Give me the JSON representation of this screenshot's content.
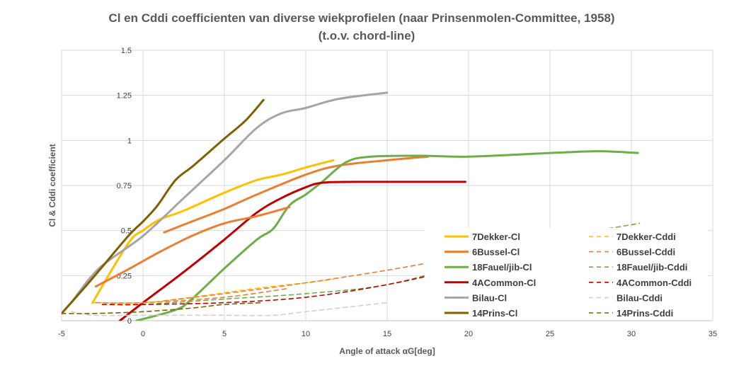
{
  "chart_data": {
    "type": "line",
    "title": "Cl en Cddi coefficienten van diverse wiekprofielen (naar Prinsenmolen-Committee,  1958)",
    "subtitle": "(t.o.v. chord-line)",
    "xlabel": "Angle of attack αG[deg]",
    "ylabel": "Cl & Cddi coefficient",
    "xlim": [
      -5,
      35
    ],
    "ylim": [
      0,
      1.5
    ],
    "xticks": [
      "-5",
      "0",
      "5",
      "10",
      "15",
      "20",
      "25",
      "30",
      "35"
    ],
    "yticks": [
      "0",
      "0.25",
      "0.5",
      "0.75",
      "1",
      "1.25",
      "1.5"
    ],
    "grid": true,
    "legend_position": "bottom-right inside",
    "series": [
      {
        "name": "7Dekker-Cl",
        "color": "#FFC000",
        "dash": false,
        "points": [
          [
            -3.1,
            0.1
          ],
          [
            -0.9,
            0.43
          ],
          [
            0,
            0.5
          ],
          [
            1,
            0.56
          ],
          [
            2.5,
            0.61
          ],
          [
            5,
            0.71
          ],
          [
            7,
            0.78
          ],
          [
            8.5,
            0.81
          ],
          [
            10,
            0.85
          ],
          [
            11.7,
            0.89
          ]
        ]
      },
      {
        "name": "6Bussel-Cl",
        "color": "#ED7D31",
        "dash": false,
        "points": [
          [
            1.3,
            0.49
          ],
          [
            3,
            0.55
          ],
          [
            5,
            0.62
          ],
          [
            7,
            0.7
          ],
          [
            10,
            0.81
          ],
          [
            12,
            0.86
          ],
          [
            15,
            0.89
          ],
          [
            17.5,
            0.91
          ]
        ]
      },
      {
        "name": "18Fauel/jib-Cl",
        "color": "#70AD47",
        "dash": false,
        "points": [
          [
            -0.4,
            0
          ],
          [
            2,
            0.06
          ],
          [
            3,
            0.12
          ],
          [
            5,
            0.29
          ],
          [
            7,
            0.45
          ],
          [
            8,
            0.51
          ],
          [
            9,
            0.64
          ],
          [
            10,
            0.7
          ],
          [
            11,
            0.77
          ],
          [
            12.5,
            0.88
          ],
          [
            14,
            0.91
          ],
          [
            17,
            0.915
          ],
          [
            20,
            0.91
          ],
          [
            25,
            0.93
          ],
          [
            28,
            0.94
          ],
          [
            30.4,
            0.93
          ]
        ]
      },
      {
        "name": "4ACommon-Cl",
        "color": "#C00000",
        "dash": false,
        "points": [
          [
            -1.7,
            -0.02
          ],
          [
            0,
            0.1
          ],
          [
            2.5,
            0.27
          ],
          [
            5,
            0.45
          ],
          [
            7,
            0.6
          ],
          [
            8.5,
            0.68
          ],
          [
            10,
            0.74
          ],
          [
            11,
            0.765
          ],
          [
            13,
            0.77
          ],
          [
            19.8,
            0.77
          ]
        ]
      },
      {
        "name": "Bilau-Cl",
        "color": "#A5A5A5",
        "dash": false,
        "points": [
          [
            -4.4,
            0.1
          ],
          [
            -2.7,
            0.29
          ],
          [
            0,
            0.47
          ],
          [
            2.5,
            0.68
          ],
          [
            5,
            0.89
          ],
          [
            7,
            1.07
          ],
          [
            8.5,
            1.15
          ],
          [
            10,
            1.18
          ],
          [
            12,
            1.23
          ],
          [
            15,
            1.265
          ]
        ]
      },
      {
        "name": "14Prins-Cl",
        "color": "#7F6000",
        "dash": false,
        "points": [
          [
            -5,
            0.04
          ],
          [
            -3.1,
            0.235
          ],
          [
            -0.9,
            0.47
          ],
          [
            0,
            0.55
          ],
          [
            0.9,
            0.64
          ],
          [
            2,
            0.78
          ],
          [
            3.1,
            0.86
          ],
          [
            5,
            1.01
          ],
          [
            6.3,
            1.11
          ],
          [
            7.4,
            1.224
          ]
        ]
      },
      {
        "name": "7Dekker-Cddi",
        "color": "#FFC000",
        "dash": true,
        "points": [
          [
            -3.1,
            0.1
          ],
          [
            0,
            0.1
          ],
          [
            3,
            0.13
          ],
          [
            7,
            0.18
          ],
          [
            10,
            0.21
          ],
          [
            11.7,
            0.23
          ]
        ]
      },
      {
        "name": "6Bussel-Cddi",
        "color": "#ED7D31",
        "dash": true,
        "points": [
          [
            1.3,
            0.11
          ],
          [
            5,
            0.15
          ],
          [
            10,
            0.21
          ],
          [
            15,
            0.28
          ],
          [
            17.5,
            0.32
          ]
        ]
      },
      {
        "name": "18Fauel/jib-Cddi",
        "color": "#70AD47",
        "dash": true,
        "points": [
          [
            -2,
            0.09
          ],
          [
            0,
            0.09
          ],
          [
            5,
            0.12
          ],
          [
            10,
            0.15
          ],
          [
            15,
            0.2
          ],
          [
            20,
            0.32
          ],
          [
            25,
            0.45
          ],
          [
            30.5,
            0.54
          ]
        ]
      },
      {
        "name": "4ACommon-Cddi",
        "color": "#C00000",
        "dash": true,
        "points": [
          [
            -2.5,
            0.09
          ],
          [
            0,
            0.09
          ],
          [
            5,
            0.1
          ],
          [
            10,
            0.13
          ],
          [
            15,
            0.2
          ],
          [
            20,
            0.3
          ]
        ]
      },
      {
        "name": "Bilau-Cddi",
        "color": "#D0D0D0",
        "dash": true,
        "points": [
          [
            -4.4,
            0.05
          ],
          [
            -3,
            0.03
          ],
          [
            0,
            0.03
          ],
          [
            5,
            0.03
          ],
          [
            8,
            0.03
          ],
          [
            10,
            0.05
          ],
          [
            15,
            0.1
          ]
        ]
      },
      {
        "name": "14Prins-Cddi",
        "color": "#7F6000",
        "dash": true,
        "points": [
          [
            -5,
            0.04
          ],
          [
            -3,
            0.04
          ],
          [
            0,
            0.05
          ],
          [
            3,
            0.07
          ],
          [
            5,
            0.09
          ],
          [
            7.4,
            0.1
          ]
        ]
      },
      {
        "color": "#ED7D31",
        "dash": false,
        "points": [
          [
            -2.9,
            0.19
          ],
          [
            -1,
            0.28
          ],
          [
            1,
            0.38
          ],
          [
            3,
            0.47
          ],
          [
            5,
            0.54
          ],
          [
            7,
            0.58
          ],
          [
            9,
            0.63
          ]
        ]
      },
      {
        "color": "#ED7D31",
        "dash": true,
        "points": [
          [
            -2.9,
            0.1
          ],
          [
            0,
            0.1
          ],
          [
            5,
            0.13
          ],
          [
            9,
            0.18
          ]
        ]
      }
    ]
  }
}
